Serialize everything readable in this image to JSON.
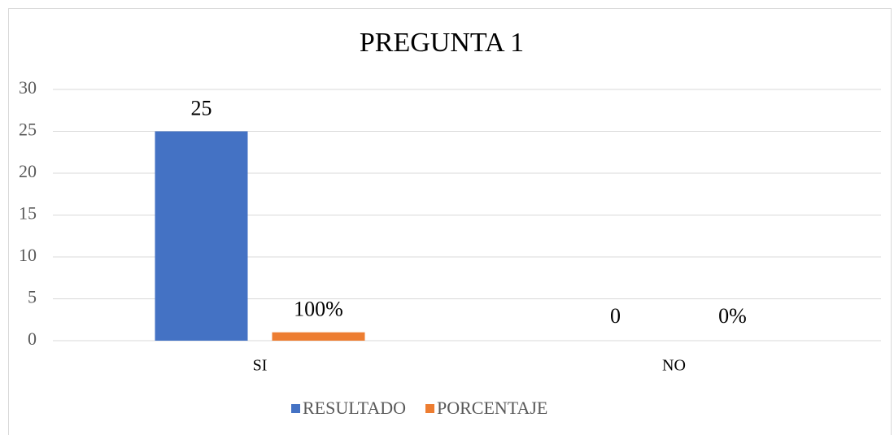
{
  "chart_data": {
    "type": "bar",
    "title": "PREGUNTA 1",
    "categories": [
      "SI",
      "NO"
    ],
    "series": [
      {
        "name": "RESULTADO",
        "color": "#4472c4",
        "values": [
          25,
          0
        ]
      },
      {
        "name": "PORCENTAJE",
        "color": "#ed7d31",
        "values": [
          1,
          0
        ],
        "value_labels": [
          "100%",
          "0%"
        ]
      }
    ],
    "ylim": [
      0,
      30
    ],
    "yticks": [
      0,
      5,
      10,
      15,
      20,
      25,
      30
    ],
    "grid": true,
    "legend": "bottom"
  }
}
